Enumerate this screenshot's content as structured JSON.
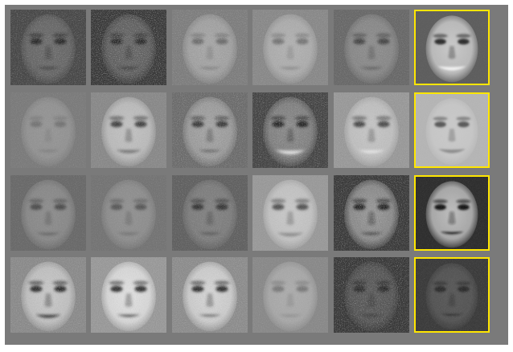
{
  "grid": {
    "background": "#7a7a7a",
    "highlight_color": "#ffe600",
    "columns": 6,
    "rows": 4,
    "rows_data": [
      {
        "faces": [
          {
            "bg": "#4a4a4a",
            "face": "#6f6f6f",
            "noise": 0.45,
            "eyes": "#2a2a2a",
            "mouth": "#303030",
            "smile": 0.0
          },
          {
            "bg": "#3a3a3a",
            "face": "#6a6a6a",
            "noise": 0.65,
            "eyes": "#2b2b2b",
            "mouth": "#2c2c2c",
            "smile": 0.0
          },
          {
            "bg": "#7f7f7f",
            "face": "#a8a8a8",
            "noise": 0.45,
            "eyes": "#6e6e6e",
            "mouth": "#7a7a7a",
            "smile": 0.1
          },
          {
            "bg": "#8a8a8a",
            "face": "#b2b2b2",
            "noise": 0.35,
            "eyes": "#777777",
            "mouth": "#808080",
            "smile": 0.1
          },
          {
            "bg": "#6a6a6a",
            "face": "#8f8f8f",
            "noise": 0.35,
            "eyes": "#4a4a4a",
            "mouth": "#555555",
            "smile": 0.1
          },
          {
            "bg": "#5e5e5e",
            "face": "#c9c9c9",
            "noise": 0.1,
            "eyes": "#2f2f2f",
            "mouth": "#f2f2f2",
            "smile": 0.9,
            "highlight": true
          }
        ]
      },
      {
        "faces": [
          {
            "bg": "#7c7c7c",
            "face": "#979797",
            "noise": 0.25,
            "eyes": "#767676",
            "mouth": "#7a7a7a",
            "smile": 0.1
          },
          {
            "bg": "#8a8a8a",
            "face": "#c2c2c2",
            "noise": 0.35,
            "eyes": "#444444",
            "mouth": "#6a6a6a",
            "smile": 0.4
          },
          {
            "bg": "#6e6e6e",
            "face": "#a5a5a5",
            "noise": 0.55,
            "eyes": "#3a3a3a",
            "mouth": "#5a5a5a",
            "smile": 0.1
          },
          {
            "bg": "#474747",
            "face": "#8d8d8d",
            "noise": 0.55,
            "eyes": "#262626",
            "mouth": "#e0e0e0",
            "smile": 0.9
          },
          {
            "bg": "#9a9a9a",
            "face": "#c5c5c5",
            "noise": 0.35,
            "eyes": "#4d4d4d",
            "mouth": "#e8e8e8",
            "smile": 0.5
          },
          {
            "bg": "#b5b5b5",
            "face": "#c9c9c9",
            "noise": 0.1,
            "eyes": "#5a5a5a",
            "mouth": "#8a8a8a",
            "smile": 0.8,
            "highlight": true
          }
        ]
      },
      {
        "faces": [
          {
            "bg": "#6b6b6b",
            "face": "#8f8f8f",
            "noise": 0.25,
            "eyes": "#4f4f4f",
            "mouth": "#5e5e5e",
            "smile": 0.2
          },
          {
            "bg": "#757575",
            "face": "#939393",
            "noise": 0.25,
            "eyes": "#5a5a5a",
            "mouth": "#6a6a6a",
            "smile": 0.1
          },
          {
            "bg": "#626262",
            "face": "#848484",
            "noise": 0.35,
            "eyes": "#383838",
            "mouth": "#4a4a4a",
            "smile": 0.0
          },
          {
            "bg": "#9a9a9a",
            "face": "#c8c8c8",
            "noise": 0.3,
            "eyes": "#555555",
            "mouth": "#888888",
            "smile": 0.6
          },
          {
            "bg": "#3c3c3c",
            "face": "#9a9a9a",
            "noise": 0.55,
            "eyes": "#202020",
            "mouth": "#2b2b2b",
            "smile": 0.0
          },
          {
            "bg": "#2e2e2e",
            "face": "#bdbdbd",
            "noise": 0.1,
            "eyes": "#151515",
            "mouth": "#121212",
            "smile": 0.2,
            "highlight": true
          }
        ]
      },
      {
        "faces": [
          {
            "bg": "#8c8c8c",
            "face": "#c8c8c8",
            "noise": 0.45,
            "eyes": "#2f2f2f",
            "mouth": "#2a2a2a",
            "smile": 0.4
          },
          {
            "bg": "#9a9a9a",
            "face": "#e0e0e0",
            "noise": 0.4,
            "eyes": "#353535",
            "mouth": "#3a3a3a",
            "smile": 0.1
          },
          {
            "bg": "#8e8e8e",
            "face": "#d5d5d5",
            "noise": 0.45,
            "eyes": "#303030",
            "mouth": "#4b4b4b",
            "smile": 0.0
          },
          {
            "bg": "#8a8a8a",
            "face": "#adadad",
            "noise": 0.25,
            "eyes": "#7a7a7a",
            "mouth": "#8a8a8a",
            "smile": 0.1
          },
          {
            "bg": "#3a3a3a",
            "face": "#5e5e5e",
            "noise": 0.6,
            "eyes": "#2a2a2a",
            "mouth": "#2e2e2e",
            "smile": 0.0
          },
          {
            "bg": "#3a3a3a",
            "face": "#5a5a5a",
            "noise": 0.2,
            "eyes": "#2b2b2b",
            "mouth": "#2f2f2f",
            "smile": 0.1,
            "highlight": true
          }
        ]
      }
    ]
  }
}
